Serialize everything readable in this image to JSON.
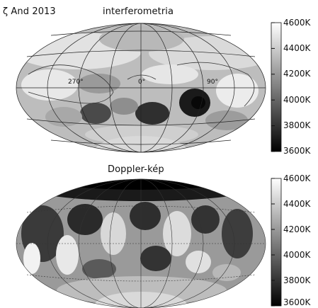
{
  "header": {
    "star_label": "ζ And 2013"
  },
  "top_map": {
    "title": "interferometria",
    "longitude_labels": [
      "270°",
      "0°",
      "90°"
    ]
  },
  "bottom_map": {
    "title": "Doppler-kép"
  },
  "colorbar_top": {
    "ticks": [
      "4600K",
      "4400K",
      "4200K",
      "4000K",
      "3800K",
      "3600K"
    ],
    "range_K": [
      3600,
      4600
    ]
  },
  "colorbar_bottom": {
    "ticks": [
      "4600K",
      "4400K",
      "4200K",
      "4000K",
      "3800K",
      "3600K"
    ],
    "range_K": [
      3600,
      4600
    ]
  },
  "colors": {
    "cold": "#000000",
    "hot": "#ffffff",
    "grid": "#222222",
    "unseen": "#d8d8d8"
  }
}
